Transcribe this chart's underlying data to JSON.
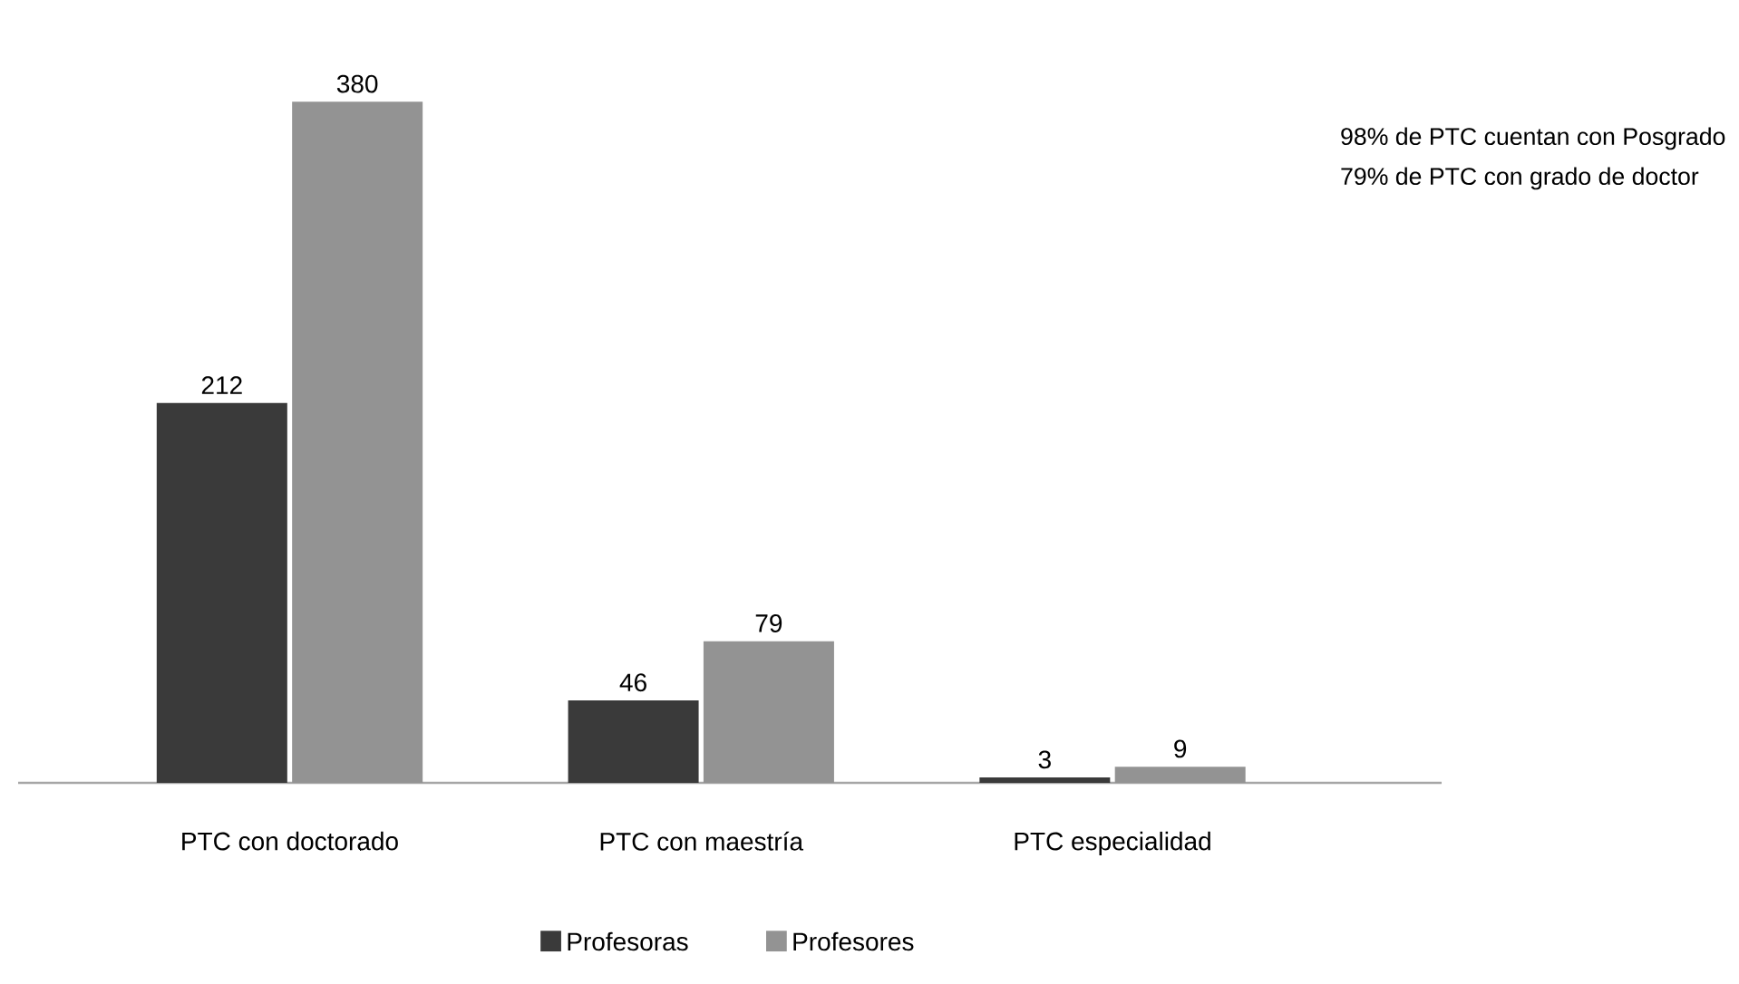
{
  "chart_data": {
    "type": "bar",
    "categories": [
      "PTC con doctorado",
      "PTC con maestría",
      "PTC especialidad"
    ],
    "series": [
      {
        "name": "Profesoras",
        "color": "#3a3a3a",
        "values": [
          212,
          46,
          3
        ]
      },
      {
        "name": "Profesores",
        "color": "#939393",
        "values": [
          380,
          79,
          9
        ]
      }
    ],
    "data_labels": true,
    "legend": "bottom",
    "annotations": [
      "98% de PTC cuentan con Posgrado",
      "79% de PTC con grado de doctor"
    ]
  }
}
